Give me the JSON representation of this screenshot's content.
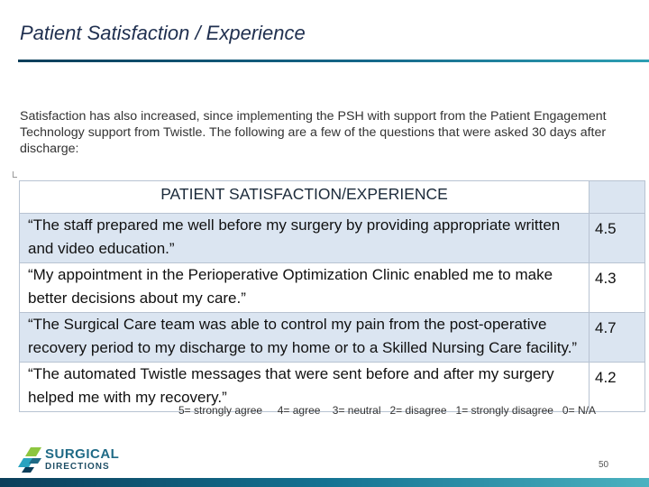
{
  "slide": {
    "title": "Patient Satisfaction / Experience",
    "intro": "Satisfaction has also increased, since implementing the PSH with support from the Patient Engagement Technology support from Twistle.  The following are a few of the questions that were asked 30 days after discharge:",
    "page_number": "50"
  },
  "table": {
    "header": "PATIENT SATISFACTION/EXPERIENCE",
    "rows": [
      {
        "question": "“The staff prepared me well before my surgery by providing appropriate written and video education.”",
        "score": "4.5"
      },
      {
        "question": "“My appointment in the Perioperative Optimization Clinic enabled me to make better decisions about my care.”",
        "score": "4.3"
      },
      {
        "question": "“The Surgical Care team was able to control my pain from the post-operative recovery period to my discharge to my home or to a Skilled Nursing Care facility.”",
        "score": "4.7"
      },
      {
        "question": "“The automated Twistle messages that were sent before and after my surgery helped me with my recovery.”",
        "score": "4.2"
      }
    ]
  },
  "legend": "5= strongly agree     4= agree    3= neutral   2= disagree   1= strongly disagree   0= N/A",
  "logo": {
    "line1": "SURGICAL",
    "line2": "DIRECTIONS"
  },
  "colors": {
    "accent_dark": "#0b3e5a",
    "accent_light": "#4bb2c0",
    "row_shade": "#dbe5f1"
  }
}
